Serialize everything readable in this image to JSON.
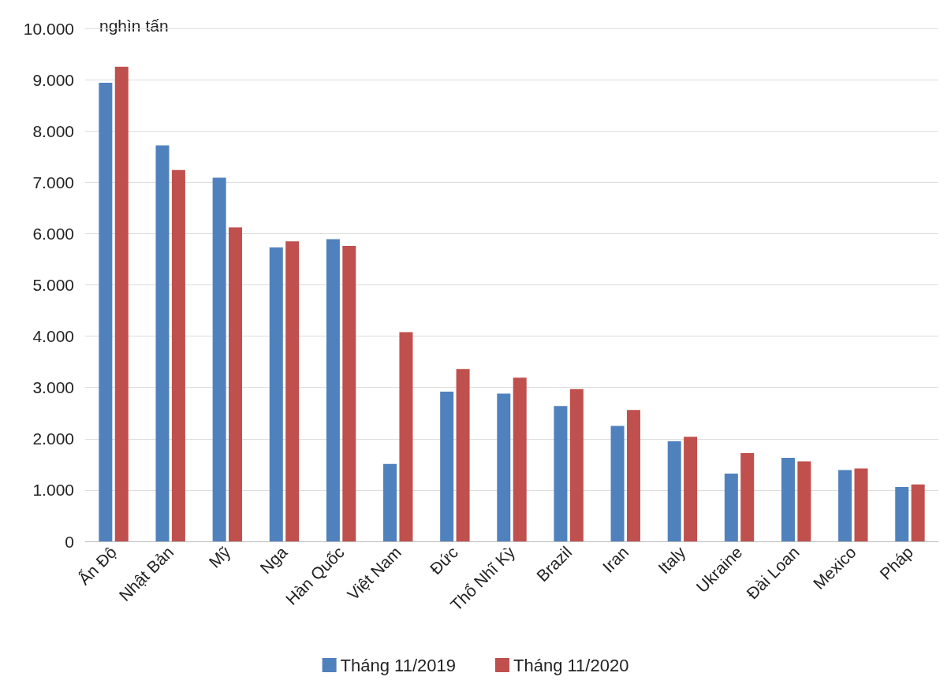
{
  "chart_data": {
    "type": "bar",
    "ylabel": "nghìn tấn",
    "categories": [
      "Ấn Độ",
      "Nhật Bản",
      "Mỹ",
      "Nga",
      "Hàn Quốc",
      "Việt Nam",
      "Đức",
      "Thổ Nhĩ Kỳ",
      "Brazil",
      "Iran",
      "Italy",
      "Ukraine",
      "Đài Loan",
      "Mexico",
      "Pháp"
    ],
    "series": [
      {
        "name": "Tháng 11/2019",
        "color": "#4f81bd",
        "values": [
          8940,
          7720,
          7090,
          5730,
          5890,
          1510,
          2920,
          2880,
          2640,
          2250,
          1950,
          1320,
          1630,
          1390,
          1060
        ]
      },
      {
        "name": "Tháng 11/2020",
        "color": "#c0504d",
        "values": [
          9250,
          7240,
          6120,
          5850,
          5760,
          4080,
          3360,
          3190,
          2970,
          2560,
          2040,
          1720,
          1560,
          1420,
          1110
        ]
      }
    ],
    "ylim": [
      0,
      10000
    ],
    "yticks": [
      0,
      {
        "value": 1000,
        "label": "1.000"
      },
      {
        "value": 2000,
        "label": "2.000"
      },
      {
        "value": 3000,
        "label": "3.000"
      },
      {
        "value": 4000,
        "label": "4.000"
      },
      {
        "value": 5000,
        "label": "5.000"
      },
      {
        "value": 6000,
        "label": "6.000"
      },
      {
        "value": 7000,
        "label": "7.000"
      },
      {
        "value": 8000,
        "label": "8.000"
      },
      {
        "value": 9000,
        "label": "9.000"
      },
      {
        "value": 10000,
        "label": "10.000"
      }
    ],
    "grid": "y",
    "legend": "bottom"
  }
}
